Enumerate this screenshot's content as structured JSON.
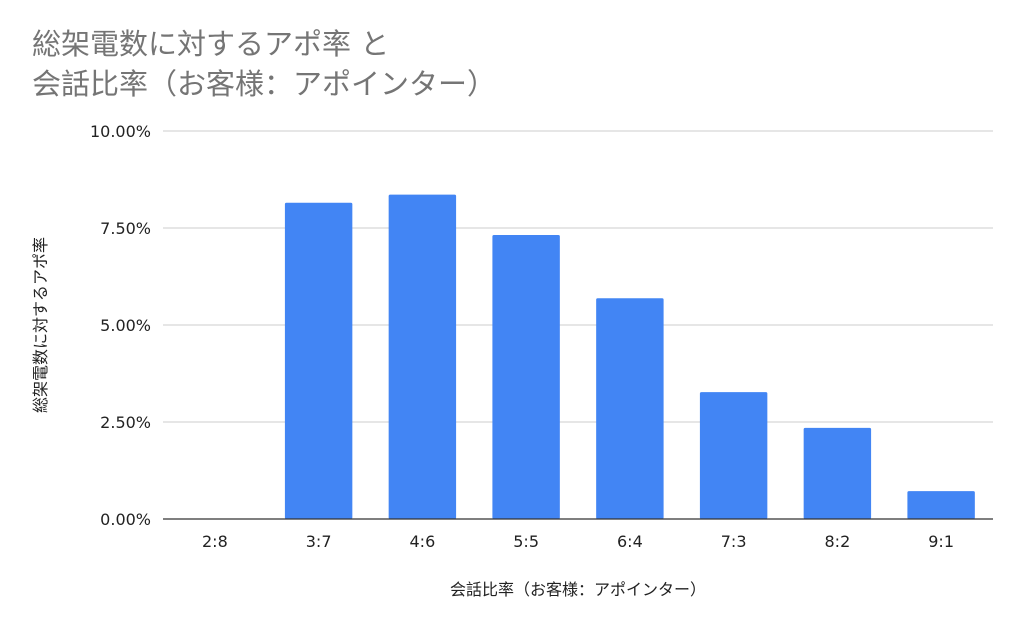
{
  "chart_data": {
    "type": "bar",
    "title_lines": [
      "総架電数に対するアポ率 と",
      "会話比率（お客様：アポインター）"
    ],
    "xlabel": "会話比率（お客様：アポインター）",
    "ylabel": "総架電数に対するアポ率",
    "categories": [
      "2:8",
      "3:7",
      "4:6",
      "5:5",
      "6:4",
      "7:3",
      "8:2",
      "9:1"
    ],
    "values": [
      0,
      8.15,
      8.36,
      7.32,
      5.69,
      3.27,
      2.35,
      0.72
    ],
    "value_unit": "percent",
    "ylim": [
      0,
      10
    ],
    "yticks": [
      0,
      2.5,
      5,
      7.5,
      10
    ],
    "ytick_labels": [
      "0.00%",
      "2.50%",
      "5.00%",
      "7.50%",
      "10.00%"
    ],
    "grid": true,
    "legend": "none",
    "colors": {
      "bar": "#4285f4",
      "grid": "#cccccc",
      "axis": "#333333",
      "title": "#757575"
    }
  }
}
